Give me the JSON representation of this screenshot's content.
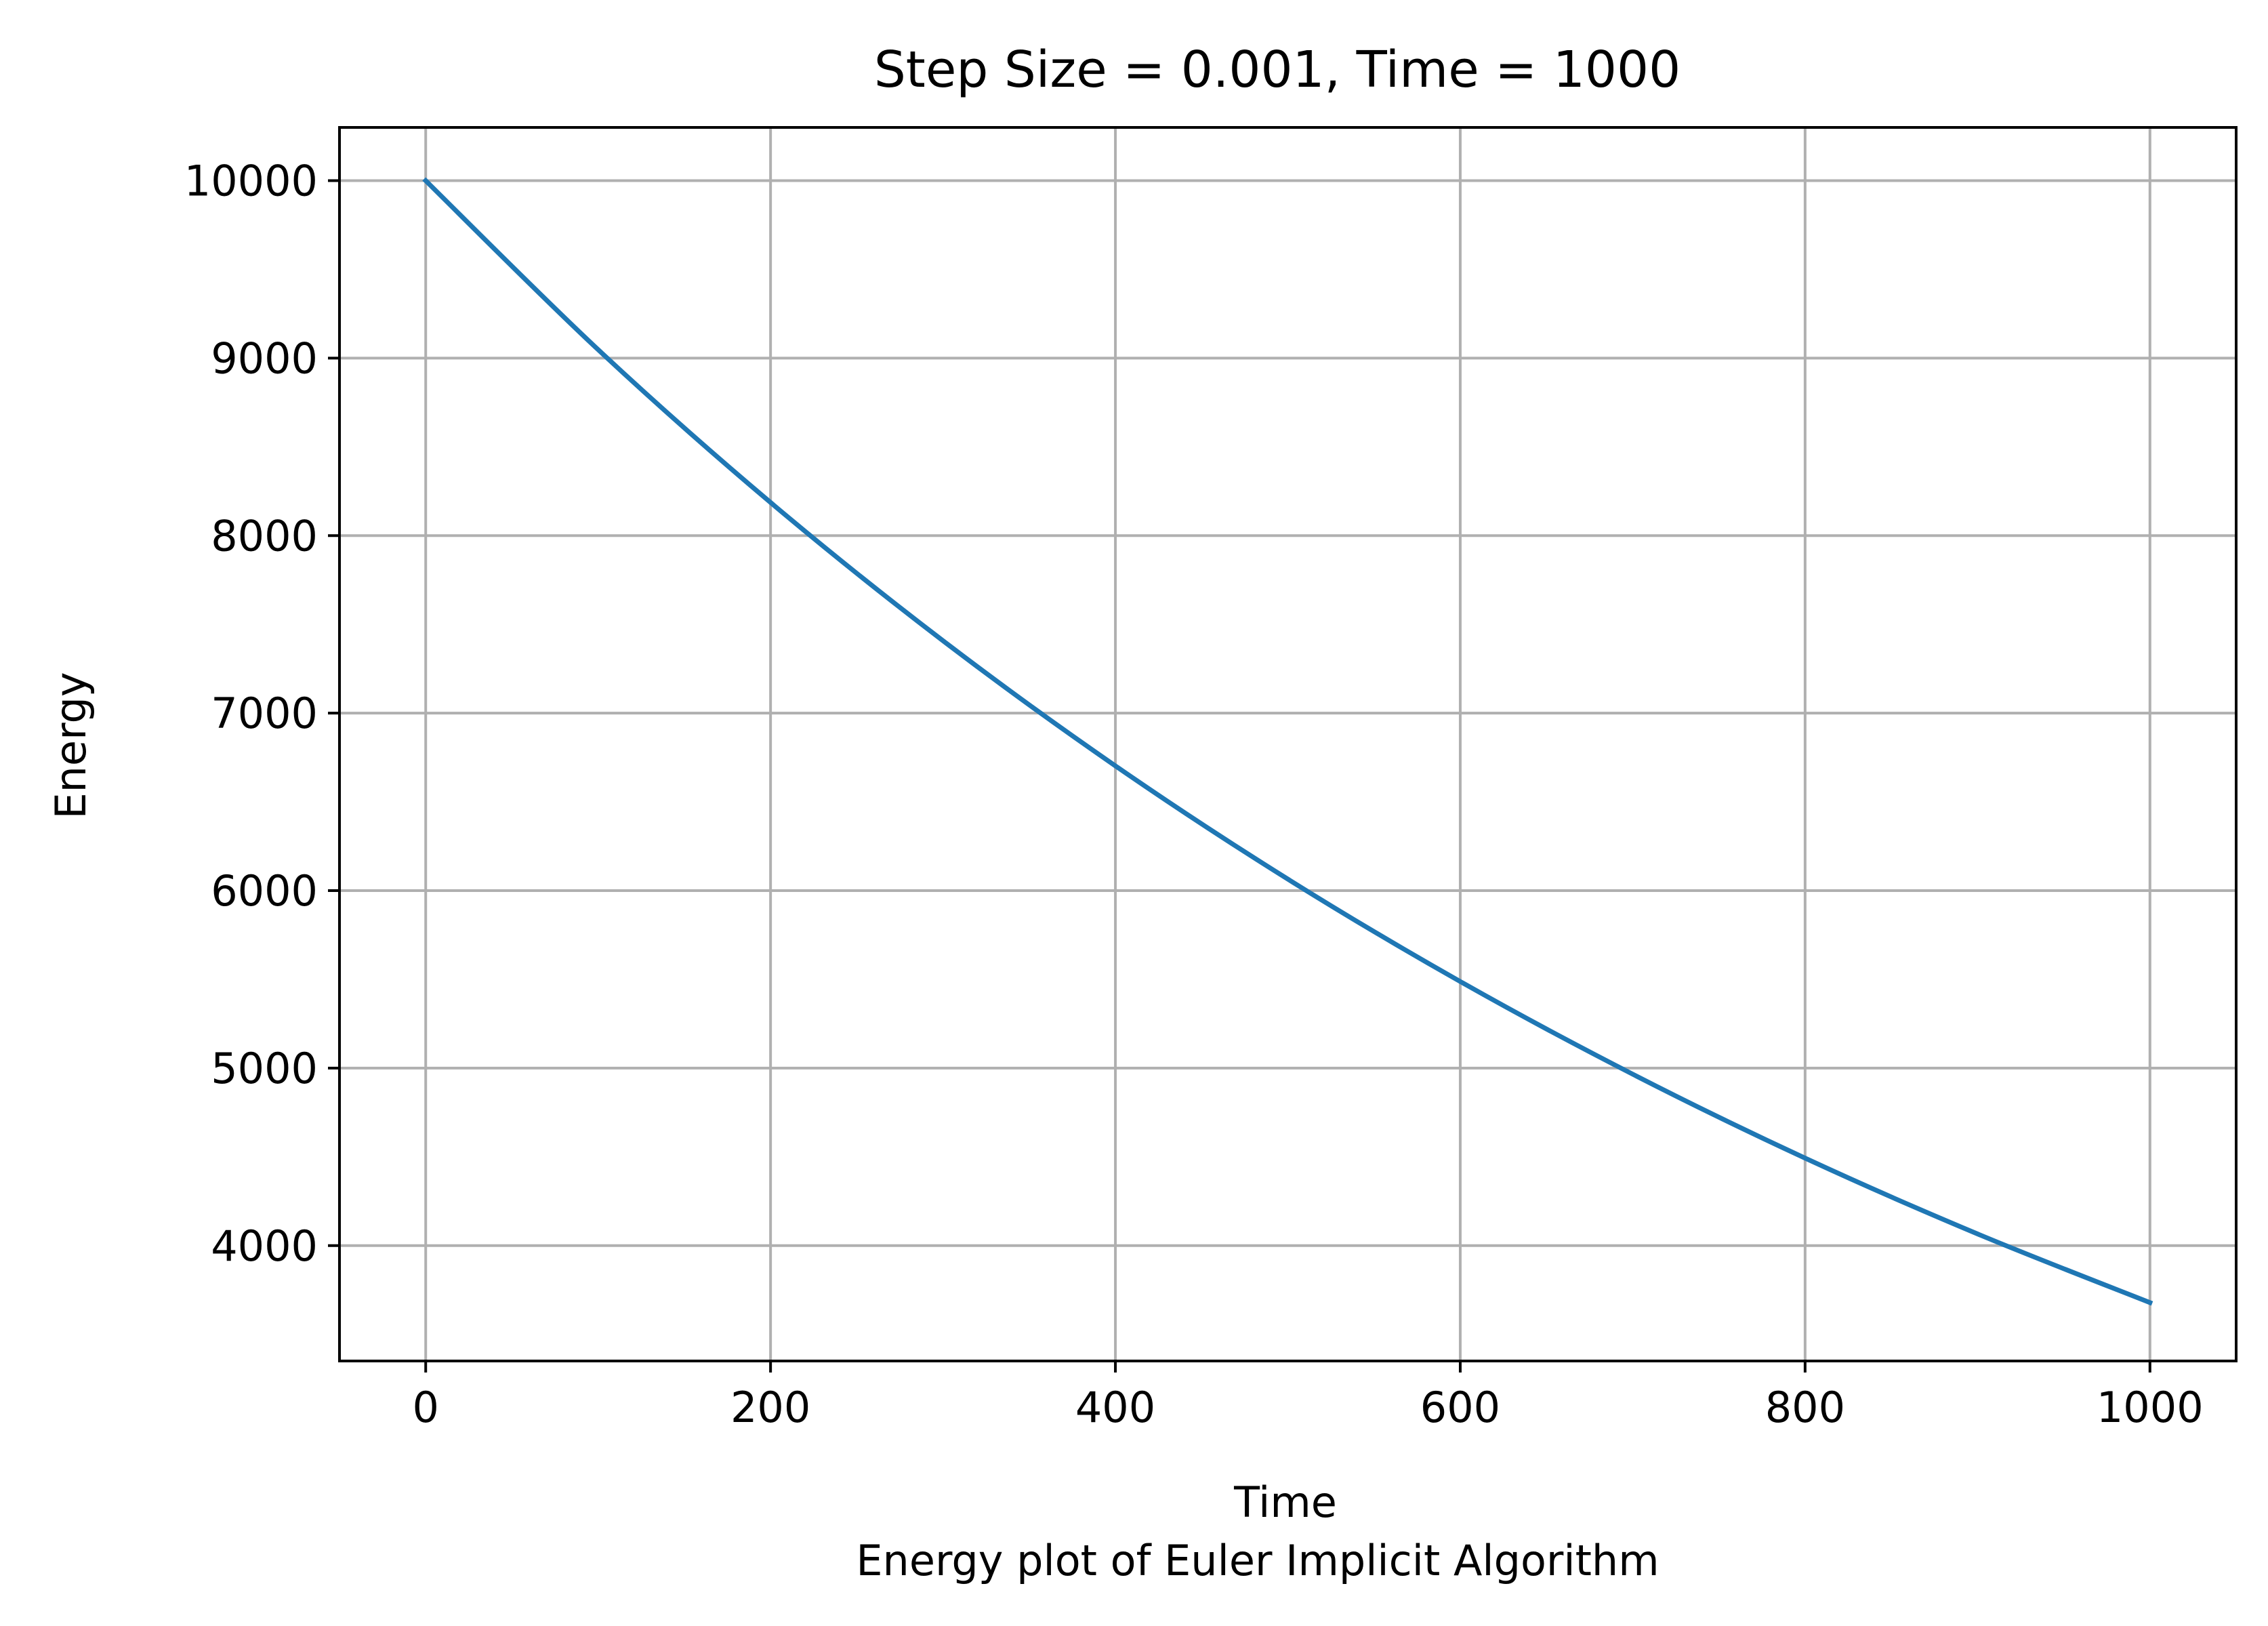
{
  "chart_data": {
    "type": "line",
    "title": "Step Size = 0.001, Time = 1000",
    "xlabel": "Time",
    "ylabel": "Energy",
    "caption": "Energy plot of Euler Implicit Algorithm",
    "xlim": [
      -50,
      1050
    ],
    "ylim": [
      3350,
      10300
    ],
    "xticks": [
      0,
      200,
      400,
      600,
      800,
      1000
    ],
    "yticks": [
      4000,
      5000,
      6000,
      7000,
      8000,
      9000,
      10000
    ],
    "grid": true,
    "line_color": "#1f77b4",
    "grid_color": "#b0b0b0",
    "series": [
      {
        "x": [
          0,
          100,
          200,
          300,
          400,
          500,
          600,
          700,
          800,
          900,
          1000
        ],
        "y": [
          10000,
          9048,
          8187,
          7408,
          6703,
          6065,
          5488,
          4966,
          4493,
          4066,
          3679
        ]
      }
    ]
  }
}
